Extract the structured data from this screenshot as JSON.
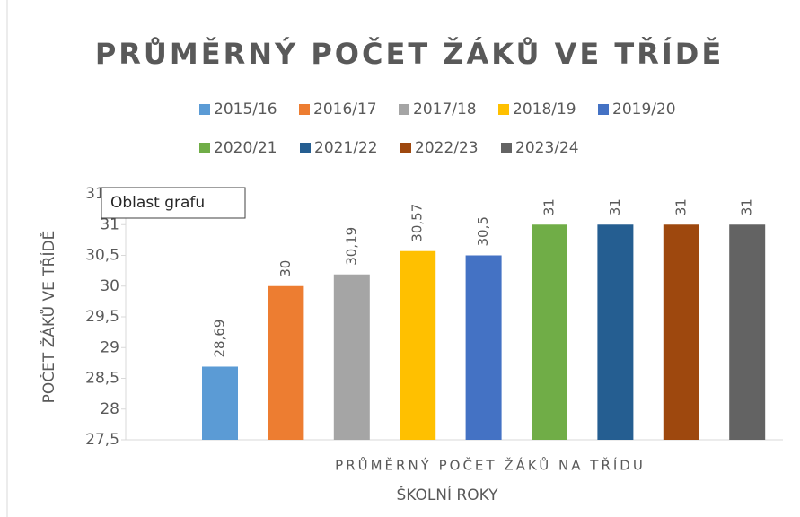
{
  "chart_data": {
    "type": "bar",
    "title": "PRŮMĚRNÝ POČET ŽÁKŮ VE TŘÍDĚ",
    "categories": [
      "PRŮMĚRNÝ POČET ŽÁKŮ NA TŘÍDU"
    ],
    "x_label": "ŠKOLNÍ ROKY",
    "y_label": "POČET ŽÁKŮ VE TŘÍDĚ",
    "tooltip": "Oblast grafu",
    "series": [
      {
        "name": "2015/16",
        "color": "#5b9bd5",
        "values": [
          28.69
        ],
        "value_labels": [
          "28,69"
        ]
      },
      {
        "name": "2016/17",
        "color": "#ed7d31",
        "values": [
          30
        ],
        "value_labels": [
          "30"
        ]
      },
      {
        "name": "2017/18",
        "color": "#a5a5a5",
        "values": [
          30.19
        ],
        "value_labels": [
          "30,19"
        ]
      },
      {
        "name": "2018/19",
        "color": "#ffc000",
        "values": [
          30.57
        ],
        "value_labels": [
          "30,57"
        ]
      },
      {
        "name": "2019/20",
        "color": "#4472c4",
        "values": [
          30.5
        ],
        "value_labels": [
          "30,5"
        ]
      },
      {
        "name": "2020/21",
        "color": "#70ad47",
        "values": [
          31
        ],
        "value_labels": [
          "31"
        ]
      },
      {
        "name": "2021/22",
        "color": "#255e91",
        "values": [
          31
        ],
        "value_labels": [
          "31"
        ]
      },
      {
        "name": "2022/23",
        "color": "#9e480e",
        "values": [
          31
        ],
        "value_labels": [
          "31"
        ]
      },
      {
        "name": "2023/24",
        "color": "#636363",
        "values": [
          31
        ],
        "value_labels": [
          "31"
        ]
      }
    ],
    "ylim": [
      27.5,
      31.5
    ],
    "yticks": [
      {
        "value": 27.5,
        "label": "27,5"
      },
      28,
      {
        "value": 28.5,
        "label": "28,5"
      },
      29,
      {
        "value": 29.5,
        "label": "29,5"
      },
      30,
      {
        "value": 30.5,
        "label": "30,5"
      },
      31,
      {
        "value": 31.5,
        "label": "31,5"
      }
    ],
    "grid": false,
    "legend": "top"
  }
}
